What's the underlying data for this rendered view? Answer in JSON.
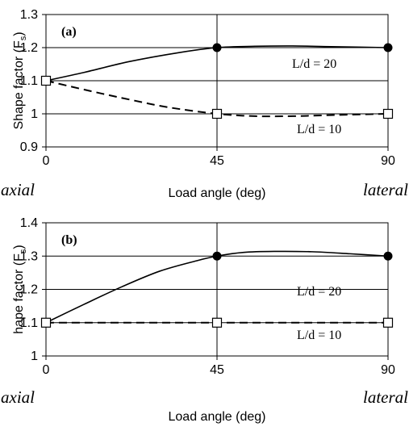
{
  "chart_data": [
    {
      "type": "line",
      "panel_label": "(a)",
      "xlabel": "Load angle (deg)",
      "ylabel": "Shape factor (F",
      "ylabel_sub": "s",
      "ylabel_close": ")",
      "x_ticks": [
        0,
        45,
        90
      ],
      "x_tick_labels": [
        "0",
        "45",
        "90"
      ],
      "y_ticks": [
        0.9,
        1.0,
        1.1,
        1.2,
        1.3
      ],
      "y_tick_labels": [
        "0.9",
        "1",
        "1.1",
        "1.2",
        "1.3"
      ],
      "xlim": [
        0,
        90
      ],
      "ylim": [
        0.9,
        1.3
      ],
      "grid": true,
      "end_annotations": [
        "axial",
        "lateral"
      ],
      "series": [
        {
          "name": "L/d = 20",
          "line_style": "solid",
          "marker": "filled-circle",
          "markers": [
            [
              0,
              1.1
            ],
            [
              45,
              1.2
            ],
            [
              90,
              1.2
            ]
          ],
          "curve": [
            [
              0,
              1.1
            ],
            [
              10,
              1.125
            ],
            [
              22,
              1.158
            ],
            [
              35,
              1.185
            ],
            [
              45,
              1.2
            ],
            [
              55,
              1.204
            ],
            [
              65,
              1.205
            ],
            [
              75,
              1.203
            ],
            [
              90,
              1.2
            ]
          ]
        },
        {
          "name": "L/d = 10",
          "line_style": "dashed",
          "marker": "open-square",
          "markers": [
            [
              0,
              1.1
            ],
            [
              45,
              1.0
            ],
            [
              90,
              1.0
            ]
          ],
          "curve": [
            [
              0,
              1.1
            ],
            [
              12,
              1.068
            ],
            [
              22,
              1.043
            ],
            [
              32,
              1.02
            ],
            [
              45,
              1.0
            ],
            [
              55,
              0.993
            ],
            [
              65,
              0.993
            ],
            [
              75,
              0.996
            ],
            [
              90,
              1.0
            ]
          ]
        }
      ]
    },
    {
      "type": "line",
      "panel_label": "(b)",
      "xlabel": "Load angle (deg)",
      "ylabel": "hape factor (F",
      "ylabel_sub": "s",
      "ylabel_close": ")",
      "x_ticks": [
        0,
        45,
        90
      ],
      "x_tick_labels": [
        "0",
        "45",
        "90"
      ],
      "y_ticks": [
        1.0,
        1.1,
        1.2,
        1.3,
        1.4
      ],
      "y_tick_labels": [
        "1",
        "1.1",
        "1.2",
        "1.3",
        "1.4"
      ],
      "xlim": [
        0,
        90
      ],
      "ylim": [
        1.0,
        1.4
      ],
      "grid": true,
      "end_annotations": [
        "axial",
        "lateral"
      ],
      "series": [
        {
          "name": "L/d = 20",
          "line_style": "solid",
          "marker": "filled-circle",
          "markers": [
            [
              0,
              1.1
            ],
            [
              45,
              1.3
            ],
            [
              90,
              1.3
            ]
          ],
          "curve": [
            [
              0,
              1.1
            ],
            [
              10,
              1.155
            ],
            [
              20,
              1.208
            ],
            [
              30,
              1.255
            ],
            [
              40,
              1.287
            ],
            [
              45,
              1.3
            ],
            [
              52,
              1.311
            ],
            [
              60,
              1.314
            ],
            [
              70,
              1.313
            ],
            [
              80,
              1.307
            ],
            [
              90,
              1.3
            ]
          ]
        },
        {
          "name": "L/d = 10",
          "line_style": "dashed",
          "marker": "open-square",
          "markers": [
            [
              0,
              1.1
            ],
            [
              45,
              1.1
            ],
            [
              90,
              1.1
            ]
          ],
          "curve": [
            [
              0,
              1.1
            ],
            [
              45,
              1.1
            ],
            [
              90,
              1.1
            ]
          ]
        }
      ]
    }
  ]
}
